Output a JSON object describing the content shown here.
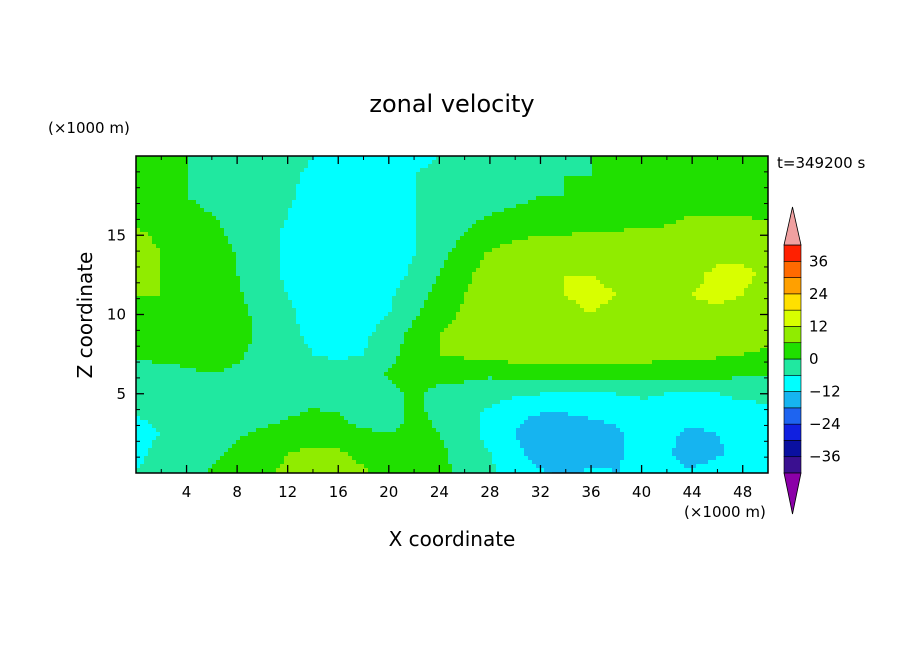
{
  "chart_data": {
    "type": "heatmap",
    "title": "zonal velocity",
    "xlabel": "X coordinate",
    "ylabel": "Z coordinate",
    "x_unit": "(×1000 m)",
    "z_unit": "(×1000 m)",
    "time_label": "t=349200 s",
    "xlim": [
      0,
      50
    ],
    "ylim": [
      0,
      20
    ],
    "x_ticks": [
      4,
      8,
      12,
      16,
      20,
      24,
      28,
      32,
      36,
      40,
      44,
      48
    ],
    "y_ticks": [
      5,
      10,
      15
    ],
    "colorbar": {
      "ticks": [
        36,
        24,
        12,
        0,
        -12,
        -24,
        -36
      ],
      "levels": [
        -42,
        -36,
        -30,
        -24,
        -18,
        -12,
        -6,
        0,
        6,
        12,
        18,
        24,
        30,
        36,
        42
      ],
      "colors": [
        "#8b00a8",
        "#3a1090",
        "#0a10a0",
        "#1020e0",
        "#1e64f0",
        "#16b4f0",
        "#00ffff",
        "#20e8a0",
        "#20e000",
        "#90ec00",
        "#d8ff00",
        "#ffe000",
        "#ffa000",
        "#ff6a00",
        "#ff2000",
        "#f0a0a0"
      ],
      "extend": "both"
    },
    "grid": [
      [
        -6,
        -4,
        -4,
        1,
        3,
        5,
        7,
        9,
        10,
        7,
        3,
        1,
        2,
        -2,
        -5,
        -8,
        -11,
        -13,
        -11,
        -12,
        -10,
        -11,
        -11,
        -9,
        -8,
        -7
      ],
      [
        -7,
        -5,
        -4,
        -2,
        2,
        4,
        6,
        7,
        7,
        4,
        2,
        1,
        1,
        -2,
        -6,
        -10,
        -15,
        -16,
        -14,
        -13,
        -10,
        -11,
        -15,
        -13,
        -10,
        -8
      ],
      [
        -7,
        -6,
        -5,
        -4,
        -1,
        1,
        3,
        4,
        3,
        1,
        0,
        1,
        0,
        -3,
        -8,
        -12,
        -17,
        -18,
        -15,
        -13,
        -10,
        -11,
        -13,
        -12,
        -10,
        -8
      ],
      [
        -6,
        -5,
        -4,
        -3,
        -2,
        -3,
        -1,
        1,
        0,
        -4,
        -2,
        1,
        -1,
        -4,
        -7,
        -10,
        -12,
        -12,
        -11,
        -10,
        -9,
        -9,
        -10,
        -9,
        -8,
        -7
      ],
      [
        -5,
        -4,
        -3,
        -2,
        -3,
        -5,
        -4,
        -3,
        -4,
        -5,
        -2,
        1,
        -2,
        -3,
        -4,
        -5,
        -6,
        -6,
        -6,
        -6,
        -5,
        -6,
        -6,
        -6,
        -5,
        -5
      ],
      [
        -3,
        -2,
        -1,
        0,
        -1,
        -3,
        -4,
        -3,
        -4,
        -3,
        1,
        3,
        2,
        2,
        1,
        2,
        2,
        2,
        3,
        3,
        2,
        2,
        2,
        2,
        1,
        0
      ],
      [
        1,
        2,
        2,
        3,
        1,
        -2,
        -4,
        -6,
        -7,
        -6,
        -2,
        3,
        6,
        7,
        8,
        9,
        9,
        9,
        9,
        9,
        9,
        8,
        8,
        7,
        6,
        5
      ],
      [
        3,
        4,
        4,
        4,
        2,
        -1,
        -5,
        -7,
        -8,
        -7,
        -4,
        2,
        6,
        8,
        9,
        10,
        10,
        10,
        11,
        11,
        10,
        10,
        10,
        9,
        9,
        8
      ],
      [
        4,
        5,
        5,
        4,
        2,
        -2,
        -5,
        -8,
        -9,
        -8,
        -6,
        -1,
        4,
        7,
        9,
        10,
        11,
        11,
        12,
        11,
        10,
        10,
        11,
        11,
        10,
        9
      ],
      [
        6,
        6,
        5,
        4,
        1,
        -3,
        -6,
        -9,
        -10,
        -9,
        -7,
        -3,
        2,
        6,
        9,
        10,
        11,
        12,
        13,
        12,
        10,
        10,
        12,
        13,
        12,
        10
      ],
      [
        7,
        6,
        5,
        3,
        0,
        -4,
        -7,
        -9,
        -10,
        -10,
        -8,
        -5,
        0,
        5,
        8,
        10,
        11,
        12,
        12,
        11,
        10,
        10,
        11,
        13,
        13,
        11
      ],
      [
        8,
        6,
        4,
        2,
        0,
        -4,
        -7,
        -10,
        -11,
        -11,
        -9,
        -6,
        -2,
        3,
        7,
        9,
        10,
        10,
        10,
        10,
        9,
        9,
        10,
        11,
        11,
        10
      ],
      [
        7,
        5,
        3,
        1,
        -1,
        -4,
        -7,
        -10,
        -11,
        -11,
        -9,
        -6,
        -3,
        0,
        3,
        5,
        6,
        6,
        7,
        7,
        7,
        7,
        8,
        9,
        9,
        8
      ],
      [
        5,
        3,
        1,
        0,
        -1,
        -3,
        -6,
        -9,
        -11,
        -10,
        -9,
        -6,
        -3,
        -1,
        0,
        1,
        1,
        1,
        2,
        3,
        4,
        5,
        6,
        6,
        6,
        5
      ],
      [
        3,
        2,
        0,
        -1,
        -2,
        -3,
        -5,
        -8,
        -10,
        -10,
        -8,
        -6,
        -4,
        -3,
        -2,
        -1,
        0,
        0,
        0,
        1,
        2,
        3,
        4,
        4,
        3,
        2
      ],
      [
        2,
        1,
        0,
        -1,
        -2,
        -3,
        -5,
        -7,
        -9,
        -9,
        -8,
        -6,
        -5,
        -4,
        -3,
        -2,
        -1,
        0,
        0,
        0,
        1,
        2,
        3,
        3,
        2,
        1
      ],
      [
        2,
        1,
        0,
        -1,
        -2,
        -3,
        -4,
        -6,
        -8,
        -9,
        -8,
        -7,
        -6,
        -5,
        -4,
        -3,
        -2,
        -1,
        0,
        0,
        1,
        2,
        3,
        4,
        3,
        2
      ]
    ]
  }
}
